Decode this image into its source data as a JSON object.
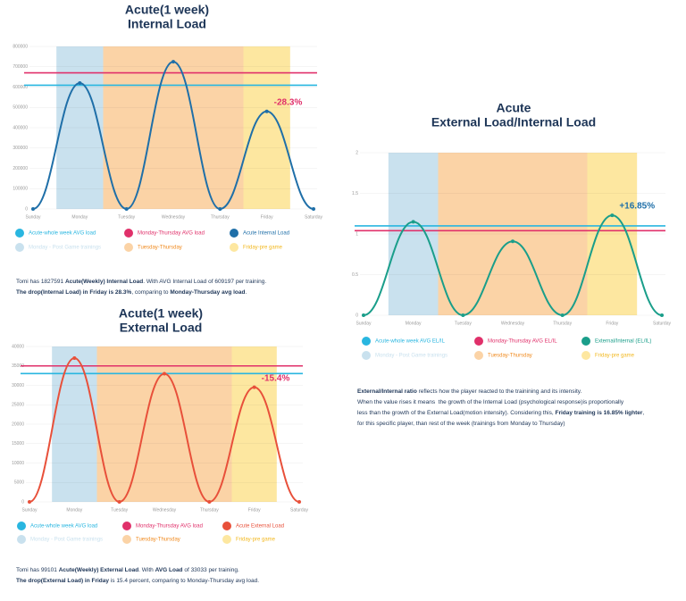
{
  "chart_data": [
    {
      "type": "line",
      "title": [
        "Acute(1 week)",
        "Internal Load"
      ],
      "categories": [
        "Sunday",
        "Monday",
        "Tuesday",
        "Wednesday",
        "Thursday",
        "Friday",
        "Saturday"
      ],
      "series": [
        {
          "name": "Acute Internal Load",
          "color": "#1f6fa8",
          "values": [
            0,
            620000,
            0,
            725000,
            0,
            480000,
            0
          ]
        }
      ],
      "lines": [
        {
          "name": "Acute-whole week AVG load",
          "color": "#29b6e0",
          "value": 609197
        },
        {
          "name": "Monday-Thursday AVG load",
          "color": "#e0306a",
          "value": 670000
        }
      ],
      "bands": [
        {
          "name": "Monday - Post Game trainings",
          "color": "#c9e1ee",
          "categories": [
            "Monday"
          ]
        },
        {
          "name": "Tuesday-Thursday",
          "color": "#fbd3a6",
          "categories": [
            "Tuesday",
            "Wednesday",
            "Thursday"
          ]
        },
        {
          "name": "Friday-pre game",
          "color": "#fde7a0",
          "categories": [
            "Friday"
          ]
        }
      ],
      "ylim": [
        0,
        800000
      ],
      "yticks": [
        0,
        100000,
        200000,
        300000,
        400000,
        500000,
        600000,
        700000,
        800000
      ],
      "grid": true,
      "annotation": {
        "text": "-28.3%",
        "color": "#e0306a"
      },
      "notes": [
        [
          {
            "text": "Tomi has 1827591 ",
            "bold": false
          },
          {
            "text": "Acute(Weekly) Internal Load",
            "bold": true
          },
          {
            "text": ". With AVG Internal Load of 609197 per training.",
            "bold": false
          }
        ],
        [
          {
            "text": "The drop(Internal Load) in Friday is 28.3%",
            "bold": true
          },
          {
            "text": ", comparing to ",
            "bold": false
          },
          {
            "text": "Monday-Thursday avg load",
            "bold": true
          },
          {
            "text": ".",
            "bold": false
          }
        ]
      ]
    },
    {
      "type": "line",
      "title": [
        "Acute(1 week)",
        "External Load"
      ],
      "categories": [
        "Sunday",
        "Monday",
        "Tuesday",
        "Wednesday",
        "Thursday",
        "Friday",
        "Saturday"
      ],
      "series": [
        {
          "name": "Acute External Load",
          "color": "#e8503a",
          "values": [
            0,
            37000,
            0,
            33000,
            0,
            29500,
            0
          ]
        }
      ],
      "lines": [
        {
          "name": "Acute-whole week AVG load",
          "color": "#29b6e0",
          "value": 33033
        },
        {
          "name": "Monday-Thursday AVG load",
          "color": "#e0306a",
          "value": 35000
        }
      ],
      "bands": [
        {
          "name": "Monday - Post Game trainings",
          "color": "#c9e1ee",
          "categories": [
            "Monday"
          ]
        },
        {
          "name": "Tuesday-Thursday",
          "color": "#fbd3a6",
          "categories": [
            "Tuesday",
            "Wednesday",
            "Thursday"
          ]
        },
        {
          "name": "Friday-pre game",
          "color": "#fde7a0",
          "categories": [
            "Friday"
          ]
        }
      ],
      "ylim": [
        0,
        40000
      ],
      "yticks": [
        0,
        5000,
        10000,
        15000,
        20000,
        25000,
        30000,
        35000,
        40000
      ],
      "grid": true,
      "annotation": {
        "text": "-15.4%",
        "color": "#e0306a"
      },
      "notes": [
        [
          {
            "text": "Tomi has 99101 ",
            "bold": false
          },
          {
            "text": "Acute(Weekly) External Load",
            "bold": true
          },
          {
            "text": ". With ",
            "bold": false
          },
          {
            "text": "AVG Load",
            "bold": true
          },
          {
            "text": " of 33033 per training.",
            "bold": false
          }
        ],
        [
          {
            "text": "The drop(External Load) in Friday",
            "bold": true
          },
          {
            "text": " is 15.4 percent, comparing to Monday-Thursday avg load.",
            "bold": false
          }
        ]
      ]
    },
    {
      "type": "line",
      "title": [
        "Acute",
        "External Load/Internal Load"
      ],
      "categories": [
        "Sunday",
        "Monday",
        "Tuesday",
        "Wednesday",
        "Thursday",
        "Friday",
        "Saturday"
      ],
      "series": [
        {
          "name": "External/Internal (EL/IL)",
          "color": "#1a9e8a",
          "values": [
            0,
            1.15,
            0,
            0.91,
            0,
            1.23,
            0
          ]
        }
      ],
      "lines": [
        {
          "name": "Acute-whole week AVG EL/IL",
          "color": "#29b6e0",
          "value": 1.1
        },
        {
          "name": "Monday-Thursday AVG EL/IL",
          "color": "#e0306a",
          "value": 1.04
        }
      ],
      "bands": [
        {
          "name": "Monday - Post Game trainings",
          "color": "#c9e1ee",
          "categories": [
            "Monday"
          ]
        },
        {
          "name": "Tuesday-Thursday",
          "color": "#fbd3a6",
          "categories": [
            "Tuesday",
            "Wednesday",
            "Thursday"
          ]
        },
        {
          "name": "Friday-pre game",
          "color": "#fde7a0",
          "categories": [
            "Friday"
          ]
        }
      ],
      "ylim": [
        0,
        2
      ],
      "yticks": [
        0,
        0.5,
        1,
        1.5,
        2
      ],
      "grid": true,
      "annotation": {
        "text": "+16.85%",
        "color": "#1f6fa8"
      },
      "notes": [
        [
          {
            "text": "External/Internal ratio",
            "bold": true
          },
          {
            "text": " reflects how the player reacted to the trainining and its intensity.",
            "bold": false
          }
        ],
        [
          {
            "text": "When the value rises it means  the growth of the Internal Load (psychological response)is proportionally",
            "bold": false
          }
        ],
        [
          {
            "text": "less than the growth of the External Load(motion intensity). Considering this, ",
            "bold": false
          },
          {
            "text": "Friday training is 16.85% lighter",
            "bold": true
          },
          {
            "text": ",",
            "bold": false
          }
        ],
        [
          {
            "text": "for this specific player, than rest of the week (trainings from Monday to Thursday)",
            "bold": false
          }
        ]
      ]
    }
  ]
}
